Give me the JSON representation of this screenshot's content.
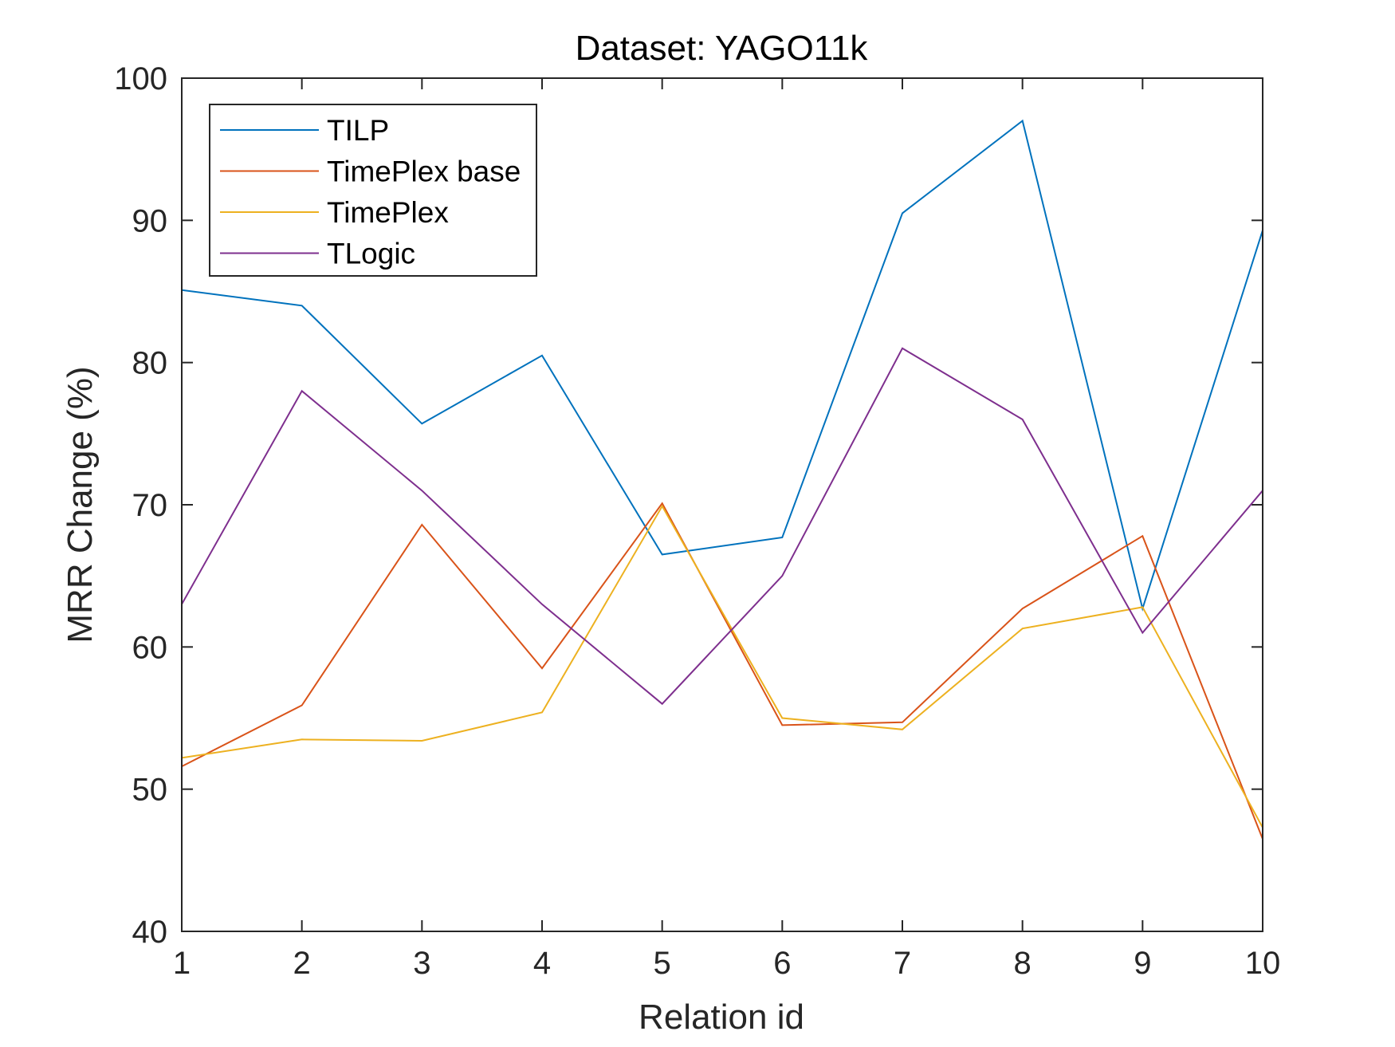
{
  "chart_data": {
    "type": "line",
    "title": "Dataset: YAGO11k",
    "xlabel": "Relation id",
    "ylabel": "MRR Change (%)",
    "x": [
      1,
      2,
      3,
      4,
      5,
      6,
      7,
      8,
      9,
      10
    ],
    "xlim": [
      1,
      10
    ],
    "ylim": [
      40,
      100
    ],
    "xticks": [
      1,
      2,
      3,
      4,
      5,
      6,
      7,
      8,
      9,
      10
    ],
    "yticks": [
      40,
      50,
      60,
      70,
      80,
      90,
      100
    ],
    "grid": false,
    "legend_location": "top-left",
    "series": [
      {
        "name": "TILP",
        "color": "#0072BD",
        "values": [
          85.1,
          84.0,
          75.7,
          80.5,
          66.5,
          67.7,
          90.5,
          97.0,
          62.7,
          89.3
        ]
      },
      {
        "name": "TimePlex base",
        "color": "#D95319",
        "values": [
          51.6,
          55.9,
          68.6,
          58.5,
          70.1,
          54.5,
          54.7,
          62.7,
          67.8,
          46.5
        ]
      },
      {
        "name": "TimePlex",
        "color": "#EDB120",
        "values": [
          52.2,
          53.5,
          53.4,
          55.4,
          69.9,
          55.0,
          54.2,
          61.3,
          62.8,
          47.3
        ]
      },
      {
        "name": "TLogic",
        "color": "#7E2F8E",
        "values": [
          63.0,
          78.0,
          71.0,
          63.0,
          56.0,
          65.0,
          81.0,
          76.0,
          61.0,
          71.0
        ]
      }
    ]
  }
}
